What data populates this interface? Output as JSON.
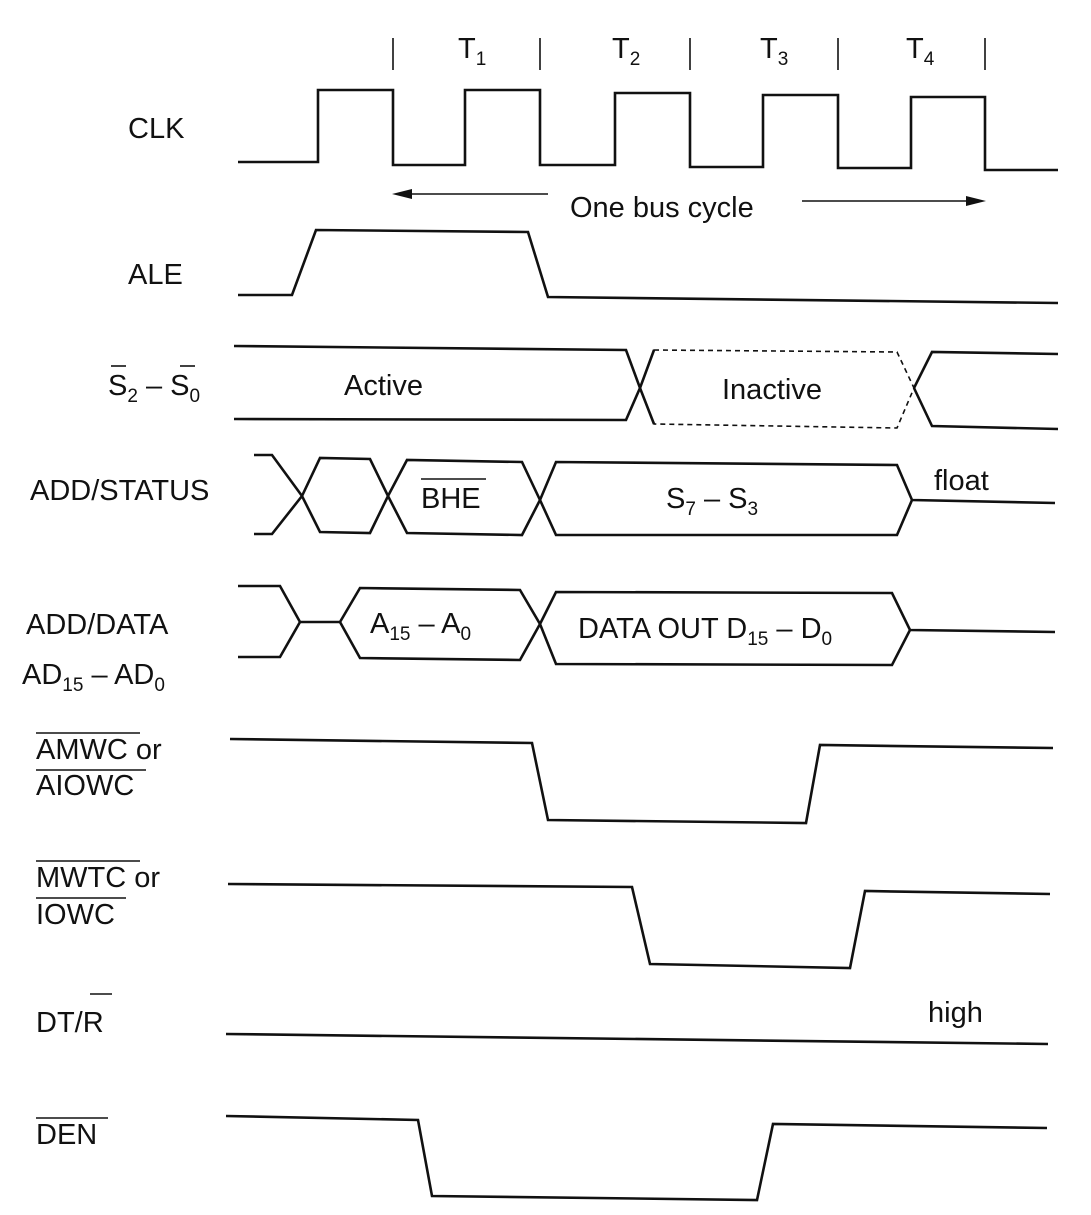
{
  "clock_periods": [
    {
      "main": "T",
      "sub": "1"
    },
    {
      "main": "T",
      "sub": "2"
    },
    {
      "main": "T",
      "sub": "3"
    },
    {
      "main": "T",
      "sub": "4"
    }
  ],
  "bus_cycle_label": "One bus cycle",
  "signals": {
    "clk": "CLK",
    "ale": "ALE",
    "status_lines": {
      "s2": "S",
      "s2_sub": "2",
      "dash": " – ",
      "s0": "S",
      "s0_sub": "0"
    },
    "add_status": "ADD/STATUS",
    "add_data": {
      "line1": "ADD/DATA",
      "line2_a": "AD",
      "line2_a_sub": "15",
      "line2_dash": " – AD",
      "line2_b_sub": "0"
    },
    "amwc": {
      "line1_bar": "AMWC",
      "line1_rest": " or",
      "line2_bar": "AIOWC"
    },
    "mwtc": {
      "line1_bar": "MWTC",
      "line1_rest": " or",
      "line2_bar": "IOWC"
    },
    "dtr": {
      "plain": "DT/",
      "bar": "R"
    },
    "den": {
      "bar": "DEN"
    }
  },
  "annotations": {
    "active": "Active",
    "inactive": "Inactive",
    "bhe": "BHE",
    "s7_s3": {
      "a": "S",
      "a_sub": "7",
      "dash": " – S",
      "b_sub": "3"
    },
    "float": "float",
    "a15_a0": {
      "a": "A",
      "a_sub": "15",
      "dash": " – A",
      "b_sub": "0"
    },
    "data_out": {
      "prefix": "DATA OUT D",
      "a_sub": "15",
      "dash": " – D",
      "b_sub": "0"
    },
    "high": "high"
  }
}
